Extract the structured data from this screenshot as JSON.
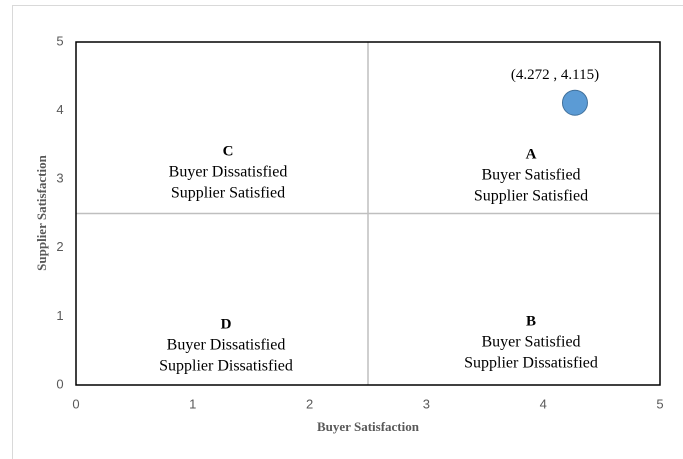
{
  "chart_data": {
    "type": "scatter",
    "xlabel": "Buyer Satisfaction",
    "ylabel": "Supplier Satisfaction",
    "xlim": [
      0,
      5
    ],
    "ylim": [
      0,
      5
    ],
    "xticks": [
      0,
      1,
      2,
      3,
      4,
      5
    ],
    "yticks": [
      0,
      1,
      2,
      3,
      4,
      5
    ],
    "quadrant_split": {
      "x": 2.5,
      "y": 2.5
    },
    "series": [
      {
        "x": [
          4.272
        ],
        "values": [
          4.115
        ],
        "value_labels": [
          "(4.272 , 4.115)"
        ],
        "color": "#5b9bd5"
      }
    ],
    "quadrants": [
      {
        "letter": "A",
        "lines": [
          "Buyer Satisfied",
          "Supplier Satisfied"
        ]
      },
      {
        "letter": "B",
        "lines": [
          "Buyer Satisfied",
          "Supplier Dissatisfied"
        ]
      },
      {
        "letter": "C",
        "lines": [
          "Buyer Dissatisfied",
          "Supplier Satisfied"
        ]
      },
      {
        "letter": "D",
        "lines": [
          "Buyer Dissatisfied",
          "Supplier Dissatisfied"
        ]
      }
    ]
  }
}
